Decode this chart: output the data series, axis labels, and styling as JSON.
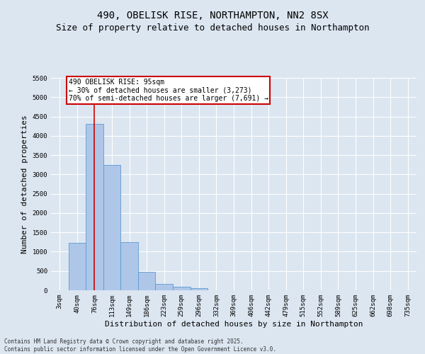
{
  "title": "490, OBELISK RISE, NORTHAMPTON, NN2 8SX",
  "subtitle": "Size of property relative to detached houses in Northampton",
  "xlabel": "Distribution of detached houses by size in Northampton",
  "ylabel": "Number of detached properties",
  "categories": [
    "3sqm",
    "40sqm",
    "76sqm",
    "113sqm",
    "149sqm",
    "186sqm",
    "223sqm",
    "259sqm",
    "296sqm",
    "332sqm",
    "369sqm",
    "406sqm",
    "442sqm",
    "479sqm",
    "515sqm",
    "552sqm",
    "589sqm",
    "625sqm",
    "662sqm",
    "698sqm",
    "735sqm"
  ],
  "values": [
    0,
    1220,
    4300,
    3250,
    1250,
    480,
    170,
    100,
    60,
    0,
    0,
    0,
    0,
    0,
    0,
    0,
    0,
    0,
    0,
    0,
    0
  ],
  "bar_color": "#aec6e8",
  "bar_edge_color": "#5b9bd5",
  "vline_x_index": 2,
  "vline_color": "#cc0000",
  "annotation_text": "490 OBELISK RISE: 95sqm\n← 30% of detached houses are smaller (3,273)\n70% of semi-detached houses are larger (7,691) →",
  "annotation_box_color": "#ffffff",
  "annotation_box_edge": "#cc0000",
  "ylim": [
    0,
    5500
  ],
  "yticks": [
    0,
    500,
    1000,
    1500,
    2000,
    2500,
    3000,
    3500,
    4000,
    4500,
    5000,
    5500
  ],
  "footnote": "Contains HM Land Registry data © Crown copyright and database right 2025.\nContains public sector information licensed under the Open Government Licence v3.0.",
  "bg_color": "#dce6f1",
  "plot_bg_color": "#dce6f1",
  "title_fontsize": 10,
  "subtitle_fontsize": 9,
  "tick_fontsize": 6.5,
  "axis_label_fontsize": 8,
  "footnote_fontsize": 5.5
}
